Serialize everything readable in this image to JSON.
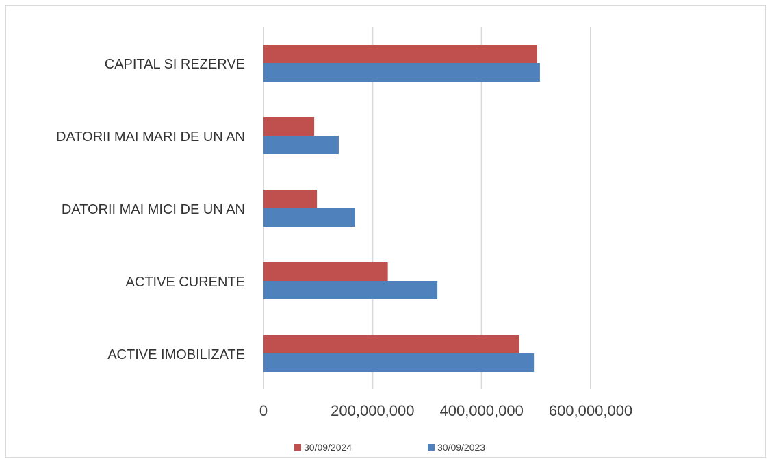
{
  "chart_data": {
    "type": "bar",
    "orientation": "horizontal",
    "categories": [
      "CAPITAL SI REZERVE",
      "DATORII MAI MARI DE UN AN",
      "DATORII MAI MICI DE UN AN",
      "ACTIVE CURENTE",
      "ACTIVE IMOBILIZATE"
    ],
    "series": [
      {
        "name": "30/09/2024",
        "color": "#c0504d",
        "values": [
          502000000,
          93000000,
          98000000,
          228000000,
          469000000
        ]
      },
      {
        "name": "30/09/2023",
        "color": "#4f81bd",
        "values": [
          507000000,
          138000000,
          168000000,
          319000000,
          496000000
        ]
      }
    ],
    "xlim": [
      0,
      600000000
    ],
    "xticks": [
      0,
      200000000,
      400000000,
      600000000
    ],
    "xtick_labels": [
      "0",
      "200,000,000",
      "400,000,000",
      "600,000,000"
    ],
    "grid": true,
    "legend_position": "bottom"
  }
}
